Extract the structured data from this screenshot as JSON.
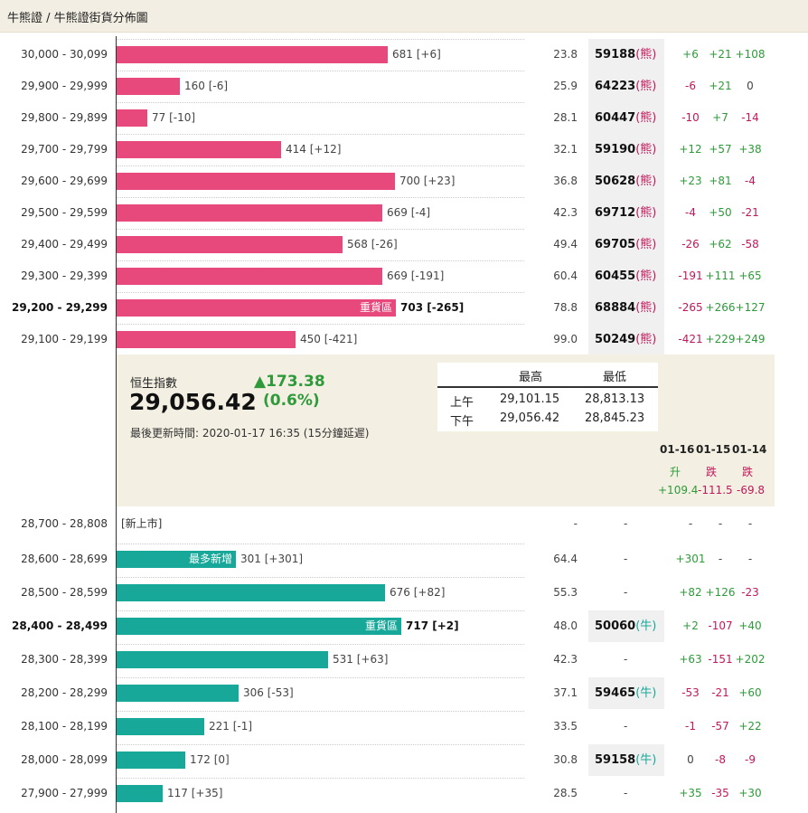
{
  "breadcrumb": "牛熊證 / 牛熊證街貨分佈圖",
  "bear_rows": [
    {
      "range": "30,000 - 30,099",
      "value_text": "681 [+6]",
      "value": 681,
      "pct": "23.8",
      "code": "59188",
      "tag": "(熊)",
      "c1": "+6",
      "c2": "+21",
      "c3": "+108"
    },
    {
      "range": "29,900 - 29,999",
      "value_text": "160 [-6]",
      "value": 160,
      "pct": "25.9",
      "code": "64223",
      "tag": "(熊)",
      "c1": "-6",
      "c2": "+21",
      "c3": "0"
    },
    {
      "range": "29,800 - 29,899",
      "value_text": "77 [-10]",
      "value": 77,
      "pct": "28.1",
      "code": "60447",
      "tag": "(熊)",
      "c1": "-10",
      "c2": "+7",
      "c3": "-14"
    },
    {
      "range": "29,700 - 29,799",
      "value_text": "414 [+12]",
      "value": 414,
      "pct": "32.1",
      "code": "59190",
      "tag": "(熊)",
      "c1": "+12",
      "c2": "+57",
      "c3": "+38"
    },
    {
      "range": "29,600 - 29,699",
      "value_text": "700 [+23]",
      "value": 700,
      "pct": "36.8",
      "code": "50628",
      "tag": "(熊)",
      "c1": "+23",
      "c2": "+81",
      "c3": "-4"
    },
    {
      "range": "29,500 - 29,599",
      "value_text": "669 [-4]",
      "value": 669,
      "pct": "42.3",
      "code": "69712",
      "tag": "(熊)",
      "c1": "-4",
      "c2": "+50",
      "c3": "-21"
    },
    {
      "range": "29,400 - 29,499",
      "value_text": "568 [-26]",
      "value": 568,
      "pct": "49.4",
      "code": "69705",
      "tag": "(熊)",
      "c1": "-26",
      "c2": "+62",
      "c3": "-58"
    },
    {
      "range": "29,300 - 29,399",
      "value_text": "669 [-191]",
      "value": 669,
      "pct": "60.4",
      "code": "60455",
      "tag": "(熊)",
      "c1": "-191",
      "c2": "+111",
      "c3": "+65"
    },
    {
      "range": "29,200 - 29,299",
      "value_text": "703 [-265]",
      "value": 703,
      "pct": "78.8",
      "code": "68884",
      "tag": "(熊)",
      "c1": "-265",
      "c2": "+266",
      "c3": "+127",
      "bold": true,
      "label": "重貨區"
    },
    {
      "range": "29,100 - 29,199",
      "value_text": "450 [-421]",
      "value": 450,
      "pct": "99.0",
      "code": "50249",
      "tag": "(熊)",
      "c1": "-421",
      "c2": "+229",
      "c3": "+249"
    }
  ],
  "index": {
    "name": "恒生指數",
    "value": "29,056.42",
    "change": "▲173.38",
    "change_pct": "(0.6%)",
    "updated": "最後更新時間: 2020-01-17 16:35 (15分鐘延遲)",
    "hl_headers": [
      "最高",
      "最低"
    ],
    "hl_rows": [
      {
        "session": "上午",
        "high": "29,101.15",
        "low": "28,813.13"
      },
      {
        "session": "下午",
        "high": "29,056.42",
        "low": "28,845.23"
      }
    ],
    "dates": [
      "01-16",
      "01-15",
      "01-14"
    ],
    "directions": [
      "升",
      "跌",
      "跌"
    ],
    "day_changes": [
      "+109.4",
      "-111.5",
      "-69.8"
    ]
  },
  "new_listing": {
    "range": "28,700 - 28,808",
    "label": "[新上市]",
    "pct": "-",
    "code": "-",
    "c1": "-",
    "c2": "-",
    "c3": "-"
  },
  "bull_rows": [
    {
      "range": "28,600 - 28,699",
      "value_text": "301 [+301]",
      "value": 301,
      "pct": "64.4",
      "code": "-",
      "c1": "+301",
      "c2": "-",
      "c3": "-",
      "label": "最多新增"
    },
    {
      "range": "28,500 - 28,599",
      "value_text": "676 [+82]",
      "value": 676,
      "pct": "55.3",
      "code": "-",
      "c1": "+82",
      "c2": "+126",
      "c3": "-23"
    },
    {
      "range": "28,400 - 28,499",
      "value_text": "717 [+2]",
      "value": 717,
      "pct": "48.0",
      "code": "50060",
      "tag": "(牛)",
      "c1": "+2",
      "c2": "-107",
      "c3": "+40",
      "bold": true,
      "label": "重貨區"
    },
    {
      "range": "28,300 - 28,399",
      "value_text": "531 [+63]",
      "value": 531,
      "pct": "42.3",
      "code": "-",
      "c1": "+63",
      "c2": "-151",
      "c3": "+202"
    },
    {
      "range": "28,200 - 28,299",
      "value_text": "306 [-53]",
      "value": 306,
      "pct": "37.1",
      "code": "59465",
      "tag": "(牛)",
      "c1": "-53",
      "c2": "-21",
      "c3": "+60"
    },
    {
      "range": "28,100 - 28,199",
      "value_text": "221 [-1]",
      "value": 221,
      "pct": "33.5",
      "code": "-",
      "c1": "-1",
      "c2": "-57",
      "c3": "+22"
    },
    {
      "range": "28,000 - 28,099",
      "value_text": "172 [0]",
      "value": 172,
      "pct": "30.8",
      "code": "59158",
      "tag": "(牛)",
      "c1": "0",
      "c2": "-8",
      "c3": "-9"
    },
    {
      "range": "27,900 - 27,999",
      "value_text": "117 [+35]",
      "value": 117,
      "pct": "28.5",
      "code": "-",
      "c1": "+35",
      "c2": "-35",
      "c3": "+30"
    }
  ],
  "colors": {
    "bear": "#e8497d",
    "bull": "#17a89a",
    "up": "#2e9a3a",
    "down": "#c2185b",
    "panel": "#f3efe2"
  }
}
